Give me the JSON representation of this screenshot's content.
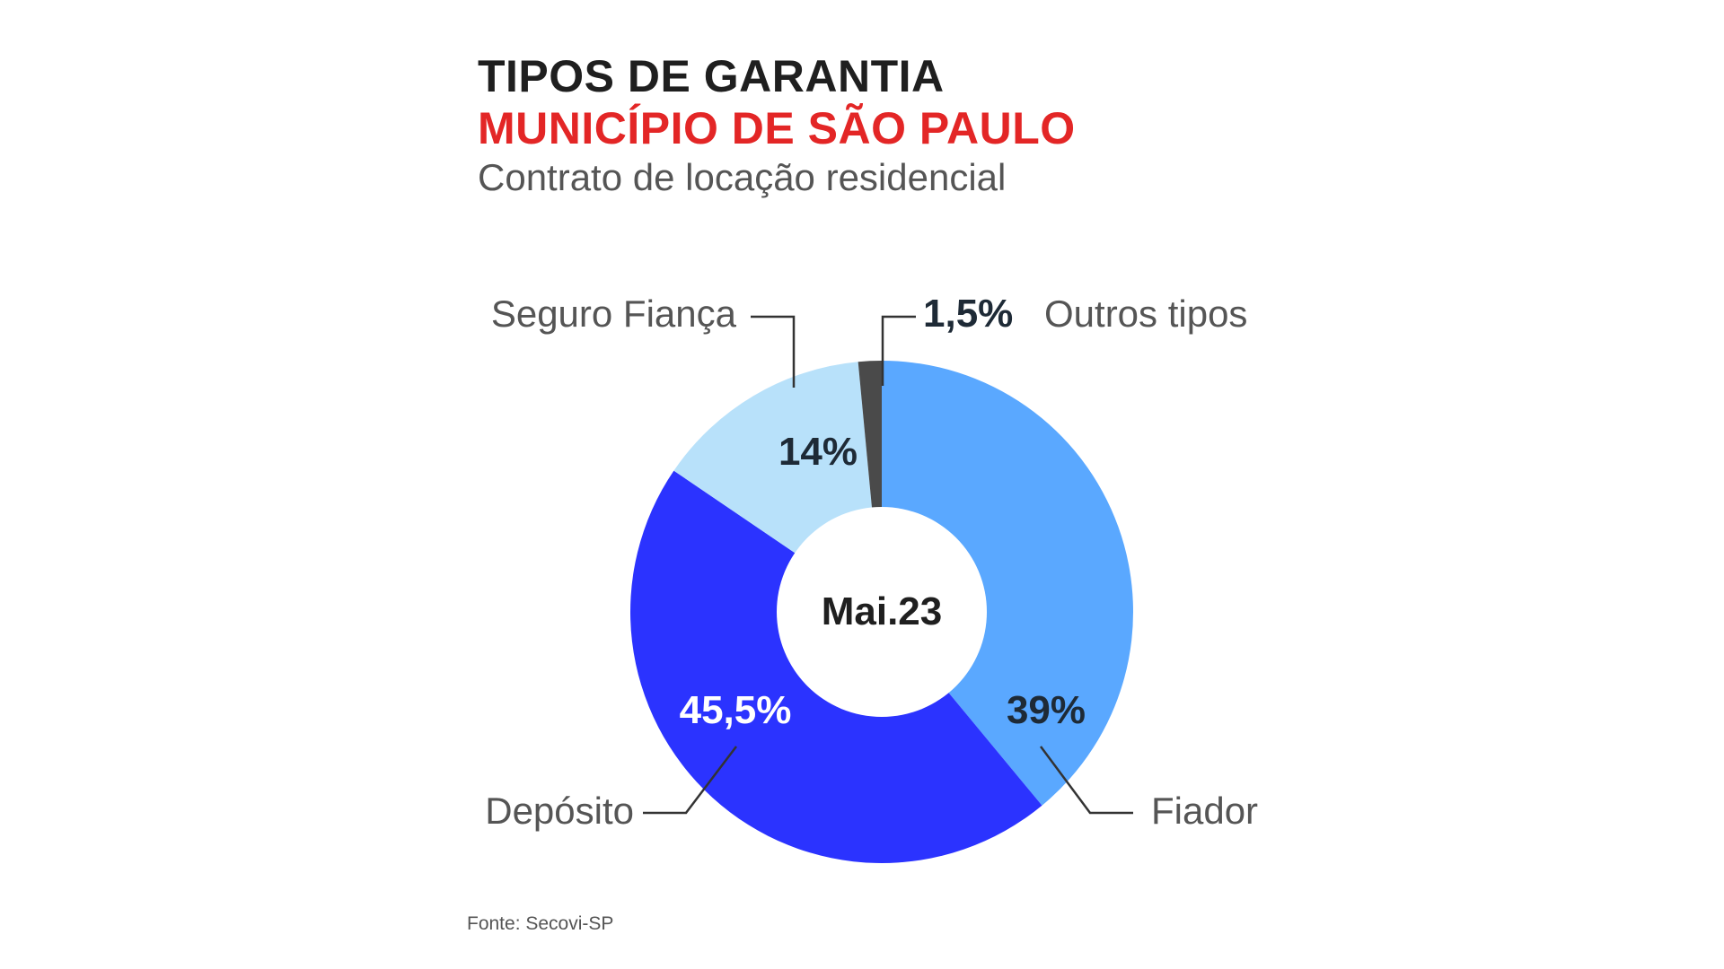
{
  "header": {
    "title": "TIPOS DE GARANTIA",
    "subtitle": "MUNICÍPIO DE SÃO PAULO",
    "description": "Contrato de locação residencial",
    "subtitle_color": "#e32626"
  },
  "footer": {
    "source": "Fonte: Secovi-SP"
  },
  "chart_data": {
    "type": "pie",
    "style": "donut",
    "center_label": "Mai.23",
    "slices": [
      {
        "label": "Fiador",
        "value": 39,
        "value_label": "39%",
        "color": "#5aa8ff"
      },
      {
        "label": "Depósito",
        "value": 45.5,
        "value_label": "45,5%",
        "color": "#2b33ff"
      },
      {
        "label": "Seguro Fiança",
        "value": 14,
        "value_label": "14%",
        "color": "#b8e1fa"
      },
      {
        "label": "Outros tipos",
        "value": 1.5,
        "value_label": "1,5%",
        "color": "#4a4a4a"
      }
    ]
  }
}
